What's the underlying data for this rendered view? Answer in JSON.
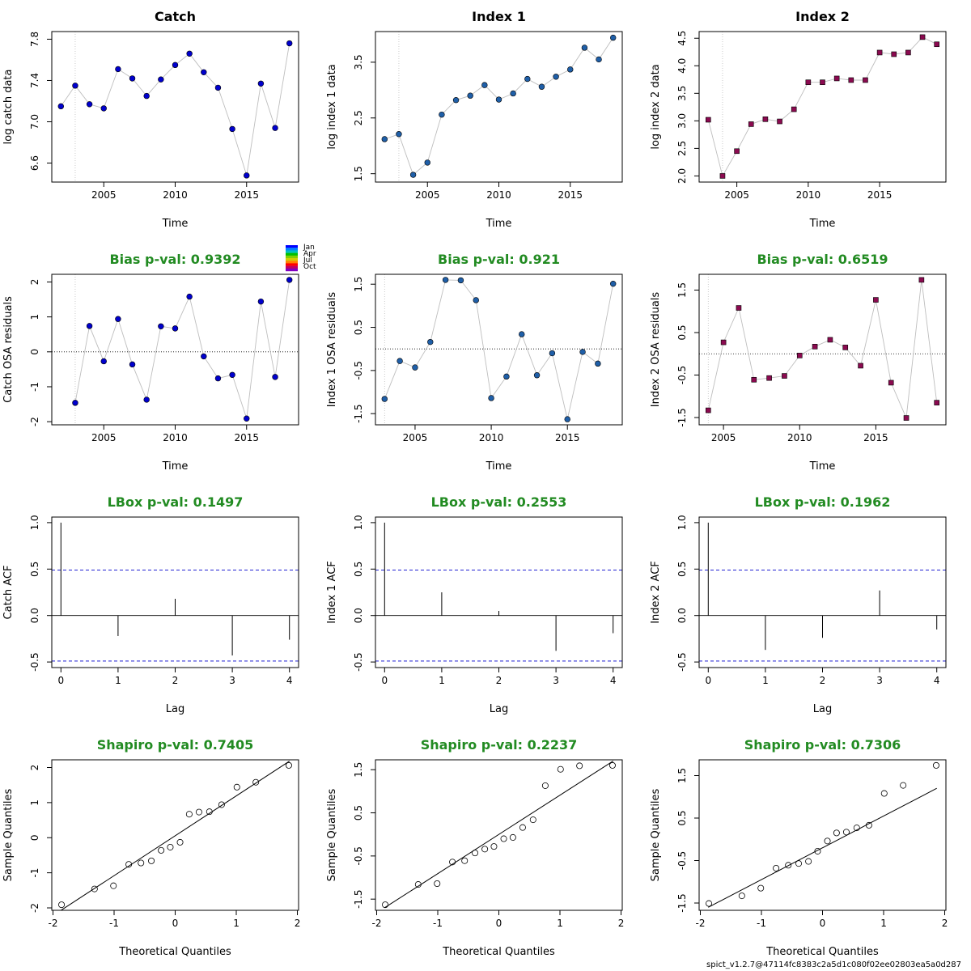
{
  "footer_text": "spict_v1.2.7@47114fc8383c2a5d1c080f02ee02803ea5a0d287",
  "colors": {
    "title_green": "#228B22",
    "catch_point": "#0000CD",
    "index1_point": "#1F5FA8",
    "index2_point": "#8B0A50",
    "series_line": "#BEBEBE",
    "confidence_band": "#0000CD"
  },
  "season_legend": [
    "Jan",
    "Apr",
    "Jul",
    "Oct"
  ],
  "chart_data": [
    {
      "type": "scatter",
      "row": 0,
      "col": 0,
      "title": "Catch",
      "title_color": "black",
      "xlabel": "Time",
      "ylabel": "log catch data",
      "xlim": [
        2002,
        2018
      ],
      "ylim": [
        6.47,
        7.82
      ],
      "xticks": [
        2005,
        2010,
        2015
      ],
      "yticks": [
        6.6,
        7.0,
        7.4,
        7.8
      ],
      "ytick_labels": [
        "6.6",
        "7.0",
        "7.4",
        "7.8"
      ],
      "vline": 2003,
      "point_shape": "circle",
      "point_color": "catch_point",
      "x": [
        2002,
        2003,
        2004,
        2005,
        2006,
        2007,
        2008,
        2009,
        2010,
        2011,
        2012,
        2013,
        2014,
        2015,
        2016,
        2017,
        2018
      ],
      "y": [
        7.15,
        7.35,
        7.17,
        7.13,
        7.51,
        7.42,
        7.25,
        7.41,
        7.55,
        7.66,
        7.48,
        7.33,
        6.93,
        6.48,
        7.37,
        6.94,
        7.76
      ]
    },
    {
      "type": "scatter",
      "row": 0,
      "col": 1,
      "title": "Index 1",
      "title_color": "black",
      "xlabel": "Time",
      "ylabel": "log index 1 data",
      "xlim": [
        2002,
        2018
      ],
      "ylim": [
        1.45,
        3.95
      ],
      "xticks": [
        2005,
        2010,
        2015
      ],
      "yticks": [
        1.5,
        2.5,
        3.5
      ],
      "ytick_labels": [
        "1.5",
        "2.5",
        "3.5"
      ],
      "vline": 2003,
      "point_shape": "circle",
      "point_color": "index1_point",
      "x": [
        2002,
        2003,
        2004,
        2005,
        2006,
        2007,
        2008,
        2009,
        2010,
        2011,
        2012,
        2013,
        2014,
        2015,
        2016,
        2017,
        2018
      ],
      "y": [
        2.12,
        2.21,
        1.48,
        1.7,
        2.56,
        2.82,
        2.9,
        3.09,
        2.83,
        2.94,
        3.2,
        3.06,
        3.24,
        3.37,
        3.76,
        3.55,
        3.94
      ]
    },
    {
      "type": "scatter",
      "row": 0,
      "col": 2,
      "title": "Index 2",
      "title_color": "black",
      "xlabel": "Time",
      "ylabel": "log index 2 data",
      "xlim": [
        2003,
        2019
      ],
      "ylim": [
        1.99,
        4.52
      ],
      "xticks": [
        2005,
        2010,
        2015
      ],
      "yticks": [
        2.0,
        2.5,
        3.0,
        3.5,
        4.0,
        4.5
      ],
      "ytick_labels": [
        "2.0",
        "2.5",
        "3.0",
        "3.5",
        "4.0",
        "4.5"
      ],
      "vline": 2004,
      "point_shape": "square",
      "point_color": "index2_point",
      "x": [
        2003,
        2004,
        2005,
        2006,
        2007,
        2008,
        2009,
        2010,
        2011,
        2012,
        2013,
        2014,
        2015,
        2016,
        2017,
        2018,
        2019
      ],
      "y": [
        3.02,
        2.0,
        2.45,
        2.94,
        3.03,
        2.99,
        3.21,
        3.7,
        3.7,
        3.77,
        3.74,
        3.74,
        4.24,
        4.21,
        4.24,
        4.52,
        4.39
      ]
    },
    {
      "type": "scatter",
      "row": 1,
      "col": 0,
      "title": "Bias p-val: 0.9392",
      "title_color": "title_green",
      "xlabel": "Time",
      "ylabel": "Catch OSA residuals",
      "xlim": [
        2002,
        2018
      ],
      "ylim": [
        -1.93,
        2.06
      ],
      "xticks": [
        2005,
        2010,
        2015
      ],
      "yticks": [
        -2,
        -1,
        0,
        1,
        2
      ],
      "ytick_labels": [
        "-2",
        "-1",
        "0",
        "1",
        "2"
      ],
      "vline": 2003,
      "hline": 0,
      "point_shape": "circle",
      "point_color": "catch_point",
      "x": [
        2003,
        2004,
        2005,
        2006,
        2007,
        2008,
        2009,
        2010,
        2011,
        2012,
        2013,
        2014,
        2015,
        2016,
        2017,
        2018
      ],
      "y": [
        -1.46,
        0.74,
        -0.27,
        0.94,
        -0.36,
        -1.37,
        0.73,
        0.67,
        1.58,
        -0.13,
        -0.76,
        -0.66,
        -1.91,
        1.44,
        -0.72,
        2.06
      ]
    },
    {
      "type": "scatter",
      "row": 1,
      "col": 1,
      "title": "Bias p-val: 0.921",
      "title_color": "title_green",
      "xlabel": "Time",
      "ylabel": "Index 1 OSA residuals",
      "xlim": [
        2003,
        2018
      ],
      "ylim": [
        -1.63,
        1.6
      ],
      "xticks": [
        2005,
        2010,
        2015
      ],
      "yticks": [
        -1.5,
        -0.5,
        0.5,
        1.5
      ],
      "ytick_labels": [
        "-1.5",
        "-0.5",
        "0.5",
        "1.5"
      ],
      "vline": 2003,
      "hline": 0,
      "point_shape": "circle",
      "point_color": "index1_point",
      "x": [
        2003,
        2004,
        2005,
        2006,
        2007,
        2008,
        2009,
        2010,
        2011,
        2012,
        2013,
        2014,
        2015,
        2016,
        2017,
        2018
      ],
      "y": [
        -1.16,
        -0.28,
        -0.43,
        0.16,
        1.6,
        1.59,
        1.13,
        -1.14,
        -0.64,
        0.34,
        -0.61,
        -0.1,
        -1.63,
        -0.07,
        -0.34,
        1.51
      ]
    },
    {
      "type": "scatter",
      "row": 1,
      "col": 2,
      "title": "Bias p-val: 0.6519",
      "title_color": "title_green",
      "xlabel": "Time",
      "ylabel": "Index 2 OSA residuals",
      "xlim": [
        2004,
        2019
      ],
      "ylim": [
        -1.54,
        1.74
      ],
      "xticks": [
        2005,
        2010,
        2015
      ],
      "yticks": [
        -1.5,
        -0.5,
        0.5,
        1.5
      ],
      "ytick_labels": [
        "-1.5",
        "-0.5",
        "0.5",
        "1.5"
      ],
      "vline": 2004,
      "hline": 0,
      "point_shape": "square",
      "point_color": "index2_point",
      "x": [
        2004,
        2005,
        2006,
        2007,
        2008,
        2009,
        2010,
        2011,
        2012,
        2013,
        2014,
        2015,
        2016,
        2017,
        2018,
        2019
      ],
      "y": [
        -1.33,
        0.27,
        1.08,
        -0.61,
        -0.57,
        -0.52,
        -0.04,
        0.17,
        0.33,
        0.15,
        -0.28,
        1.27,
        -0.68,
        -1.51,
        1.74,
        -1.15
      ]
    },
    {
      "type": "bar",
      "row": 2,
      "col": 0,
      "title": "LBox p-val: 0.1497",
      "title_color": "title_green",
      "xlabel": "Lag",
      "ylabel": "Catch ACF",
      "xlim": [
        0,
        4
      ],
      "ylim": [
        -0.5,
        1.0
      ],
      "xticks": [
        0,
        1,
        2,
        3,
        4
      ],
      "yticks": [
        -0.5,
        0.0,
        0.5,
        1.0
      ],
      "ytick_labels": [
        "-0.5",
        "0.0",
        "0.5",
        "1.0"
      ],
      "hline": 0,
      "conf_band": 0.49,
      "x": [
        0,
        1,
        2,
        3,
        4
      ],
      "y": [
        1.0,
        -0.22,
        0.18,
        -0.43,
        -0.26
      ]
    },
    {
      "type": "bar",
      "row": 2,
      "col": 1,
      "title": "LBox p-val: 0.2553",
      "title_color": "title_green",
      "xlabel": "Lag",
      "ylabel": "Index 1 ACF",
      "xlim": [
        0,
        4
      ],
      "ylim": [
        -0.5,
        1.0
      ],
      "xticks": [
        0,
        1,
        2,
        3,
        4
      ],
      "yticks": [
        -0.5,
        0.0,
        0.5,
        1.0
      ],
      "ytick_labels": [
        "-0.5",
        "0.0",
        "0.5",
        "1.0"
      ],
      "hline": 0,
      "conf_band": 0.49,
      "x": [
        0,
        1,
        2,
        3,
        4
      ],
      "y": [
        1.0,
        0.25,
        0.05,
        -0.38,
        -0.19
      ]
    },
    {
      "type": "bar",
      "row": 2,
      "col": 2,
      "title": "LBox p-val: 0.1962",
      "title_color": "title_green",
      "xlabel": "Lag",
      "ylabel": "Index 2 ACF",
      "xlim": [
        0,
        4
      ],
      "ylim": [
        -0.5,
        1.0
      ],
      "xticks": [
        0,
        1,
        2,
        3,
        4
      ],
      "yticks": [
        -0.5,
        0.0,
        0.5,
        1.0
      ],
      "ytick_labels": [
        "-0.5",
        "0.0",
        "0.5",
        "1.0"
      ],
      "hline": 0,
      "conf_band": 0.49,
      "x": [
        0,
        1,
        2,
        3,
        4
      ],
      "y": [
        1.0,
        -0.37,
        -0.24,
        0.27,
        -0.15
      ]
    },
    {
      "type": "scatter",
      "row": 3,
      "col": 0,
      "title": "Shapiro p-val: 0.7405",
      "title_color": "title_green",
      "xlabel": "Theoretical Quantiles",
      "ylabel": "Sample Quantiles",
      "xlim": [
        -1.87,
        1.87
      ],
      "ylim": [
        -1.91,
        2.06
      ],
      "xticks": [
        -2,
        -1,
        0,
        1,
        2
      ],
      "yticks": [
        -2,
        -1,
        0,
        1,
        2
      ],
      "ytick_labels": [
        "-2",
        "-1",
        "0",
        "1",
        "2"
      ],
      "point_shape": "open-circle",
      "qq_line": [
        [
          -1.87,
          -2.07
        ],
        [
          1.87,
          2.18
        ]
      ],
      "x": [
        -1.86,
        -1.32,
        -1.01,
        -0.76,
        -0.56,
        -0.39,
        -0.23,
        -0.08,
        0.08,
        0.23,
        0.39,
        0.56,
        0.76,
        1.01,
        1.32,
        1.86
      ],
      "y": [
        -1.91,
        -1.46,
        -1.37,
        -0.76,
        -0.72,
        -0.66,
        -0.36,
        -0.27,
        -0.13,
        0.67,
        0.73,
        0.74,
        0.94,
        1.44,
        1.58,
        2.06
      ]
    },
    {
      "type": "scatter",
      "row": 3,
      "col": 1,
      "title": "Shapiro p-val: 0.2237",
      "title_color": "title_green",
      "xlabel": "Theoretical Quantiles",
      "ylabel": "Sample Quantiles",
      "xlim": [
        -1.87,
        1.87
      ],
      "ylim": [
        -1.63,
        1.6
      ],
      "xticks": [
        -2,
        -1,
        0,
        1,
        2
      ],
      "yticks": [
        -1.5,
        -0.5,
        0.5,
        1.5
      ],
      "ytick_labels": [
        "-1.5",
        "-0.5",
        "0.5",
        "1.5"
      ],
      "point_shape": "open-circle",
      "qq_line": [
        [
          -1.87,
          -1.7
        ],
        [
          1.87,
          1.7
        ]
      ],
      "x": [
        -1.86,
        -1.32,
        -1.01,
        -0.76,
        -0.56,
        -0.39,
        -0.23,
        -0.08,
        0.08,
        0.23,
        0.39,
        0.56,
        0.76,
        1.01,
        1.32,
        1.86
      ],
      "y": [
        -1.63,
        -1.16,
        -1.14,
        -0.64,
        -0.61,
        -0.43,
        -0.34,
        -0.28,
        -0.1,
        -0.07,
        0.16,
        0.34,
        1.13,
        1.51,
        1.59,
        1.6
      ]
    },
    {
      "type": "scatter",
      "row": 3,
      "col": 2,
      "title": "Shapiro p-val: 0.7306",
      "title_color": "title_green",
      "xlabel": "Theoretical Quantiles",
      "ylabel": "Sample Quantiles",
      "xlim": [
        -1.87,
        1.87
      ],
      "ylim": [
        -1.54,
        1.74
      ],
      "xticks": [
        -2,
        -1,
        0,
        1,
        2
      ],
      "yticks": [
        -1.5,
        -0.5,
        0.5,
        1.5
      ],
      "ytick_labels": [
        "-1.5",
        "-0.5",
        "0.5",
        "1.5"
      ],
      "point_shape": "open-circle",
      "qq_line": [
        [
          -1.87,
          -1.6
        ],
        [
          1.87,
          1.2
        ]
      ],
      "x": [
        -1.86,
        -1.32,
        -1.01,
        -0.76,
        -0.56,
        -0.39,
        -0.23,
        -0.08,
        0.08,
        0.23,
        0.39,
        0.56,
        0.76,
        1.01,
        1.32,
        1.86
      ],
      "y": [
        -1.51,
        -1.33,
        -1.15,
        -0.68,
        -0.61,
        -0.57,
        -0.52,
        -0.28,
        -0.04,
        0.15,
        0.17,
        0.27,
        0.33,
        1.08,
        1.27,
        1.74
      ]
    }
  ]
}
